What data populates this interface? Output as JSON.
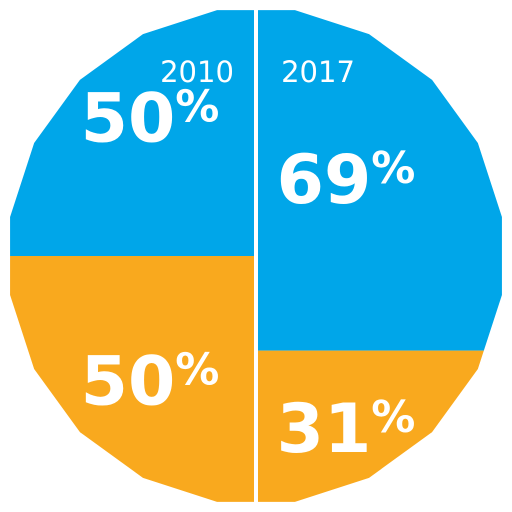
{
  "chart_data": {
    "type": "pie",
    "categories": [
      "2010",
      "2017"
    ],
    "series": [
      {
        "color": "#00a6e9",
        "values": [
          50,
          69
        ],
        "labels": [
          "50",
          "69"
        ]
      },
      {
        "color": "#f9a91e",
        "values": [
          50,
          31
        ],
        "labels": [
          "50",
          "31"
        ]
      }
    ],
    "percent_sign": "%",
    "divider_color": "#ffffff"
  }
}
